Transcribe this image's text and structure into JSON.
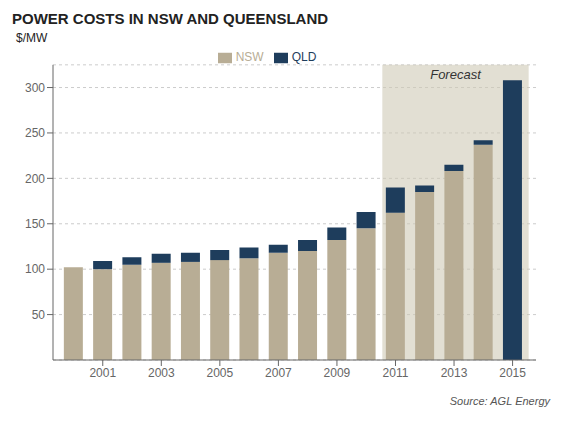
{
  "chart_data": {
    "type": "bar",
    "title": "POWER COSTS IN NSW AND QUEENSLAND",
    "y_label": "$/MW",
    "source": "Source: AGL Energy",
    "stacked": true,
    "grid": true,
    "legend": "top",
    "x": [
      2000,
      2001,
      2002,
      2003,
      2004,
      2005,
      2006,
      2007,
      2008,
      2009,
      2010,
      2011,
      2012,
      2013,
      2014,
      2015
    ],
    "series": [
      {
        "name": "NSW",
        "color": "#b8ad95",
        "values": [
          102,
          100,
          105,
          107,
          108,
          110,
          112,
          118,
          120,
          132,
          145,
          162,
          185,
          208,
          237,
          0
        ]
      },
      {
        "name": "QLD",
        "color": "#1e3d5c",
        "values": [
          0,
          9,
          8,
          10,
          10,
          11,
          12,
          9,
          12,
          14,
          18,
          28,
          7,
          7,
          5,
          308
        ]
      }
    ],
    "xlim": [
      1999.3,
      2015.8
    ],
    "xticks": [
      2001,
      2003,
      2005,
      2007,
      2009,
      2011,
      2013,
      2015
    ],
    "ylim": [
      0,
      325
    ],
    "yticks": [
      50,
      100,
      150,
      200,
      250,
      300
    ],
    "span": {
      "x": [
        2010.55,
        2015.55
      ],
      "color": "#cec9b5",
      "label": "Forecast"
    }
  }
}
